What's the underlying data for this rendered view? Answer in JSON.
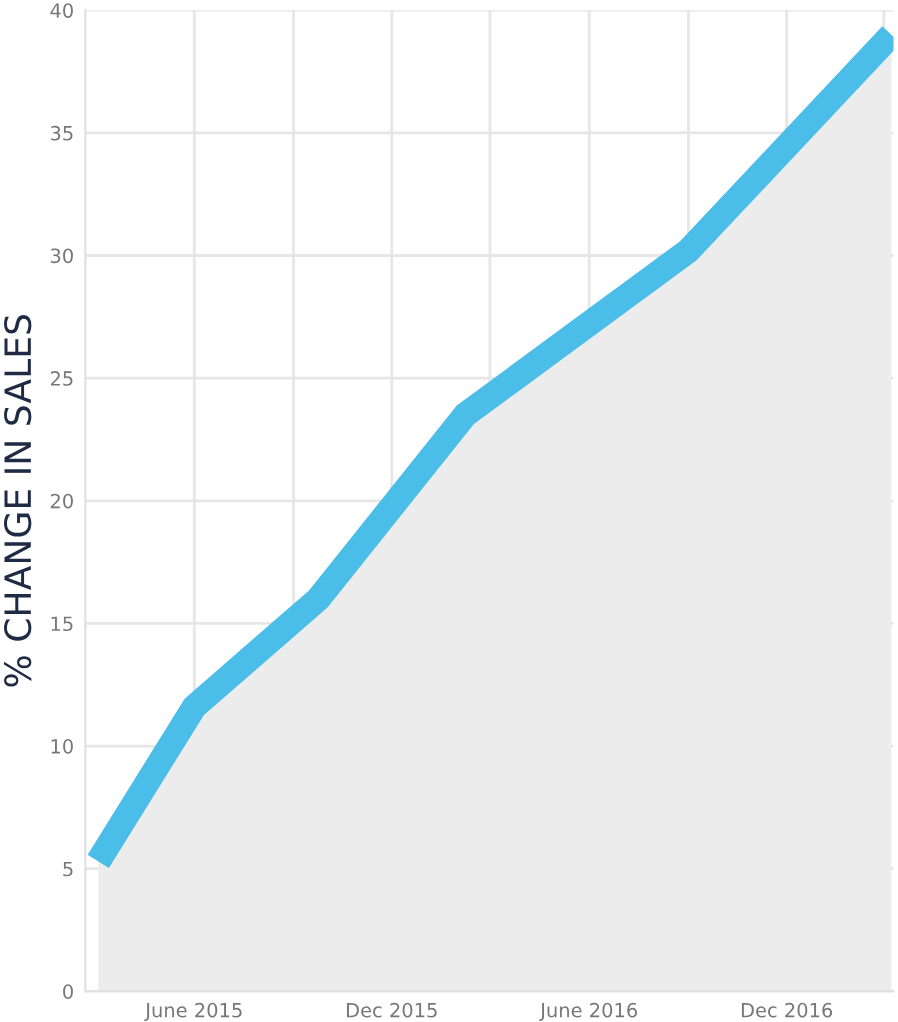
{
  "chart_data": {
    "type": "area",
    "ylabel": "% CHANGE IN SALES",
    "x": [
      "2015-03-04",
      "2015-06-01",
      "2015-09-24",
      "2016-02-07",
      "2016-09-01",
      "2017-03-08"
    ],
    "series": [
      {
        "color": "#4bbde9",
        "values": [
          5.3,
          11.6,
          16,
          23.5,
          30.2,
          39
        ]
      }
    ],
    "xlim": [
      "2015-02-20",
      "2017-03-10"
    ],
    "xticks": [
      {
        "value": "2015-06-01",
        "label": "June 2015"
      },
      {
        "value": "2015-09-01",
        "label": null
      },
      {
        "value": "2015-12-01",
        "label": "Dec 2015"
      },
      {
        "value": "2016-03-01",
        "label": null
      },
      {
        "value": "2016-06-01",
        "label": "June 2016"
      },
      {
        "value": "2016-09-01",
        "label": null
      },
      {
        "value": "2016-12-01",
        "label": "Dec 2016"
      },
      {
        "value": "2017-03-01",
        "label": null
      }
    ],
    "ylim": [
      0,
      40
    ],
    "yticks": [
      0,
      5,
      10,
      15,
      20,
      25,
      30,
      35,
      40
    ],
    "grid": true
  }
}
